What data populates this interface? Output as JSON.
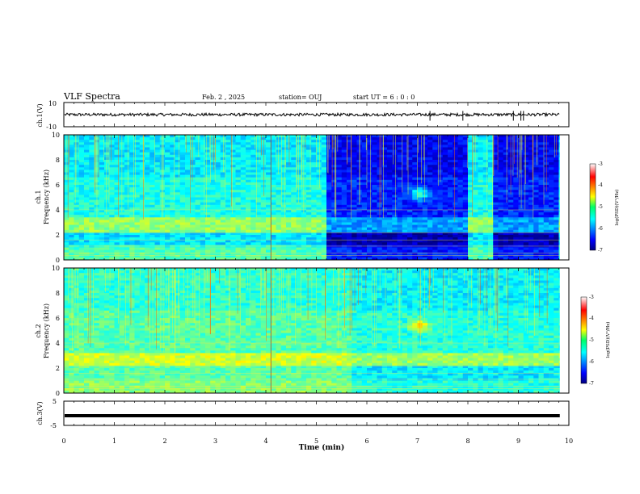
{
  "header": {
    "title": "VLF Spectra",
    "date": "Feb. 2 , 2025",
    "station": "station= OUJ",
    "start": "start UT =  6 : 0 : 0"
  },
  "chart_data": [
    {
      "type": "line",
      "panel": "ch1-waveform",
      "ylabel": "ch.1(V)",
      "ylim": [
        -10,
        10
      ],
      "yticks": [
        "10",
        "-10"
      ],
      "baseline": 0,
      "spikes_min": [
        7.25,
        7.9,
        8.9,
        9.05,
        9.1
      ],
      "color": "#000000"
    },
    {
      "type": "heatmap",
      "panel": "ch1-spectrogram",
      "ylabel_channel": "ch.1",
      "ylabel": "Frequency (kHz)",
      "ylim": [
        0,
        10
      ],
      "yticks": [
        "0",
        "2",
        "4",
        "6",
        "8",
        "10"
      ],
      "xlim": [
        0,
        10
      ],
      "quiet_intervals_min": [
        [
          5.2,
          8.0
        ],
        [
          8.5,
          9.8
        ]
      ],
      "emission_band_khz": [
        2.2,
        3.3
      ],
      "hiss_blob": {
        "time_min": 7.05,
        "freq_khz": 5.3
      },
      "colorbar": {
        "label": "log(PSD)(V²/Hz)",
        "range": [
          -7,
          -3
        ],
        "ticks": [
          "-3",
          "-4",
          "-5",
          "-6",
          "-7"
        ]
      }
    },
    {
      "type": "heatmap",
      "panel": "ch2-spectrogram",
      "ylabel_channel": "ch.2",
      "ylabel": "Frequency (kHz)",
      "ylim": [
        0,
        10
      ],
      "yticks": [
        "0",
        "2",
        "4",
        "6",
        "8",
        "10"
      ],
      "xlim": [
        0,
        10
      ],
      "emission_band_khz": [
        2.2,
        3.2
      ],
      "hiss_blob": {
        "time_min": 7.05,
        "freq_khz": 5.4
      },
      "colorbar": {
        "label": "log(PSD)(V²/Hz)",
        "range": [
          -7,
          -3
        ],
        "ticks": [
          "-3",
          "-4",
          "-5",
          "-6",
          "-7"
        ]
      }
    },
    {
      "type": "line",
      "panel": "ch3-waveform",
      "ylabel": "ch.3(V)",
      "ylim": [
        -5,
        5
      ],
      "yticks": [
        "5",
        "-5"
      ],
      "level": -1.0,
      "color": "#000000"
    }
  ],
  "xaxis": {
    "label": "Time (min)",
    "range": [
      0,
      10
    ],
    "ticks": [
      "0",
      "1",
      "2",
      "3",
      "4",
      "5",
      "6",
      "7",
      "8",
      "9",
      "10"
    ],
    "data_end_min": 9.82
  }
}
